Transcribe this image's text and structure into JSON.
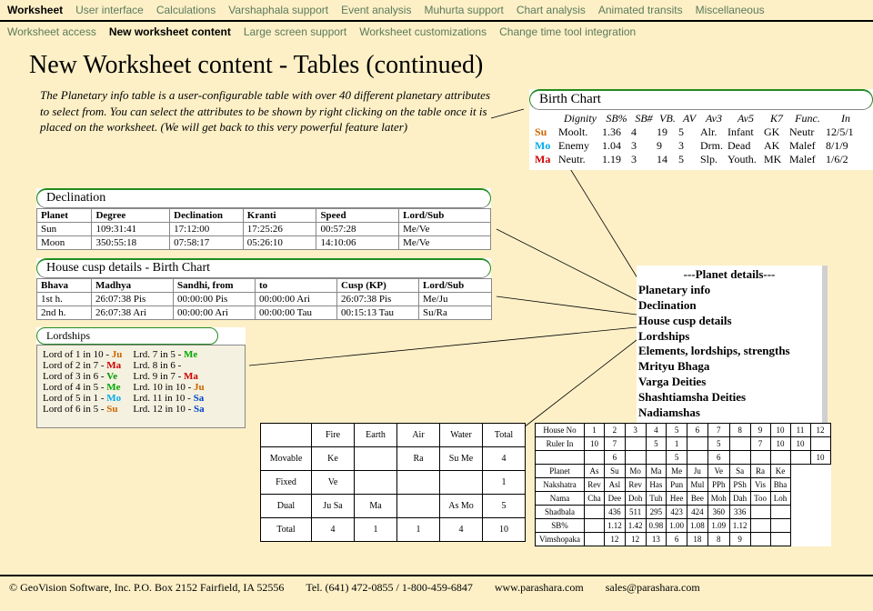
{
  "nav": {
    "items": [
      "Worksheet",
      "User interface",
      "Calculations",
      "Varshaphala support",
      "Event analysis",
      "Muhurta support",
      "Chart analysis",
      "Animated transits",
      "Miscellaneous"
    ],
    "active": 0
  },
  "subnav": {
    "items": [
      "Worksheet access",
      "New worksheet content",
      "Large screen support",
      "Worksheet customizations",
      "Change time tool integration"
    ],
    "active": 1
  },
  "title": "New Worksheet content - Tables (continued)",
  "description": "The Planetary info table is a user-configurable table with over 40 different planetary attributes to select from. You can select the attributes to be shown by right clicking on the table once it is placed on the worksheet. (We will get back to this very powerful feature later)",
  "birth": {
    "title": "Birth Chart",
    "cols": [
      "Dignity",
      "SB%",
      "SB#",
      "VB.",
      "AV",
      "Av3",
      "Av5",
      "K7",
      "Func.",
      "In"
    ],
    "rows": [
      {
        "p": "Su",
        "c": "#cc6600",
        "v": [
          "Moolt.",
          "1.36",
          "4",
          "19",
          "5",
          "Alr.",
          "Infant",
          "GK",
          "Neutr",
          "12/5/1"
        ]
      },
      {
        "p": "Mo",
        "c": "#00aaee",
        "v": [
          "Enemy",
          "1.04",
          "3",
          "9",
          "3",
          "Drm.",
          "Dead",
          "AK",
          "Malef",
          "8/1/9"
        ]
      },
      {
        "p": "Ma",
        "c": "#cc0000",
        "v": [
          "Neutr.",
          "1.19",
          "3",
          "14",
          "5",
          "Slp.",
          "Youth.",
          "MK",
          "Malef",
          "1/6/2"
        ]
      }
    ]
  },
  "declination": {
    "title": "Declination",
    "headers": [
      "Planet",
      "Degree",
      "Declination",
      "Kranti",
      "Speed",
      "Lord/Sub"
    ],
    "rows": [
      [
        "Sun",
        "109:31:41",
        "17:12:00",
        "17:25:26",
        "00:57:28",
        "Me/Ve"
      ],
      [
        "Moon",
        "350:55:18",
        "07:58:17",
        "05:26:10",
        "14:10:06",
        "Me/Ve"
      ]
    ]
  },
  "housecusp": {
    "title": "House cusp details - Birth Chart",
    "headers": [
      "Bhava",
      "Madhya",
      "Sandhi, from",
      "to",
      "Cusp (KP)",
      "Lord/Sub"
    ],
    "rows": [
      [
        "1st h.",
        "26:07:38 Pis",
        "00:00:00 Pis",
        "00:00:00 Ari",
        "26:07:38 Pis",
        "Me/Ju"
      ],
      [
        "2nd h.",
        "26:07:38 Ari",
        "00:00:00 Ari",
        "00:00:00 Tau",
        "00:15:13 Tau",
        "Su/Ra"
      ]
    ]
  },
  "lordships": {
    "title": "Lordships",
    "col1": [
      {
        "t": "Lord of 1 in 10 - ",
        "p": "Ju"
      },
      {
        "t": "Lord of 2 in 7 - ",
        "p": "Ma"
      },
      {
        "t": "Lord of 3 in 6 - ",
        "p": "Ve"
      },
      {
        "t": "Lord of 4 in 5 - ",
        "p": "Me"
      },
      {
        "t": "Lord of 5 in 1 - ",
        "p": "Mo"
      },
      {
        "t": "Lord of 6 in 5 - ",
        "p": "Su"
      }
    ],
    "col2": [
      {
        "t": "Lrd. 7 in 5 - ",
        "p": "Me"
      },
      {
        "t": "Lrd. 8 in 6 - ",
        "p": ""
      },
      {
        "t": "Lrd. 9 in 7 - ",
        "p": "Ma"
      },
      {
        "t": "Lrd. 10 in 10 - ",
        "p": "Ju"
      },
      {
        "t": "Lrd. 11 in 10 - ",
        "p": "Sa"
      },
      {
        "t": "Lrd. 12 in 10 - ",
        "p": "Sa"
      }
    ]
  },
  "menu": {
    "title": "---Planet details---",
    "items": [
      "Planetary info",
      "Declination",
      "House cusp details",
      "Lordships",
      "Elements, lordships, strengths",
      "Mrityu Bhaga",
      "Varga Deities",
      "Shashtiamsha Deities",
      "Nadiamshas"
    ]
  },
  "elements": {
    "cols": [
      "",
      "Fire",
      "Earth",
      "Air",
      "Water",
      "Total"
    ],
    "rows": [
      [
        "Movable",
        "Ke",
        "",
        "Ra",
        "Su Me",
        "4"
      ],
      [
        "Fixed",
        "Ve",
        "",
        "",
        "",
        "1"
      ],
      [
        "Dual",
        "Ju Sa",
        "Ma",
        "",
        "As Mo",
        "5"
      ],
      [
        "Total",
        "4",
        "1",
        "1",
        "4",
        "10"
      ]
    ]
  },
  "varga": {
    "rows": [
      [
        "House No",
        "1",
        "2",
        "3",
        "4",
        "5",
        "6",
        "7",
        "8",
        "9",
        "10",
        "11",
        "12"
      ],
      [
        "Ruler In",
        "10",
        "7",
        "",
        "5",
        "1",
        "",
        "5",
        "",
        "7",
        "10",
        "10",
        ""
      ],
      [
        "",
        "",
        "6",
        "",
        "",
        "5",
        "",
        "6",
        "",
        "",
        "",
        "",
        "10"
      ],
      [
        "Planet",
        "As",
        "Su",
        "Mo",
        "Ma",
        "Me",
        "Ju",
        "Ve",
        "Sa",
        "Ra",
        "Ke",
        "",
        ""
      ],
      [
        "Nakshatra",
        "Rev",
        "Asl",
        "Rev",
        "Has",
        "Pun",
        "Mul",
        "PPh",
        "PSh",
        "Vis",
        "Bha",
        "",
        ""
      ],
      [
        "Nama",
        "Cha",
        "Dee",
        "Doh",
        "Tuh",
        "Hee",
        "Bee",
        "Moh",
        "Dah",
        "Too",
        "Loh",
        "",
        ""
      ],
      [
        "Shadbala",
        "",
        "436",
        "511",
        "295",
        "423",
        "424",
        "360",
        "336",
        "",
        "",
        "",
        ""
      ],
      [
        "SB%",
        "",
        "1.12",
        "1.42",
        "0.98",
        "1.00",
        "1.08",
        "1.09",
        "1.12",
        "",
        "",
        "",
        ""
      ],
      [
        "Vimshopaka",
        "",
        "12",
        "12",
        "13",
        "6",
        "18",
        "8",
        "9",
        "",
        "",
        "",
        ""
      ]
    ],
    "cols10": [
      3,
      4,
      5,
      6,
      7,
      8
    ]
  },
  "footer": {
    "copyright": "© GeoVision Software, Inc. P.O. Box 2152 Fairfield, IA 52556",
    "tel": "Tel. (641) 472-0855 / 1-800-459-6847",
    "web": "www.parashara.com",
    "email": "sales@parashara.com"
  }
}
